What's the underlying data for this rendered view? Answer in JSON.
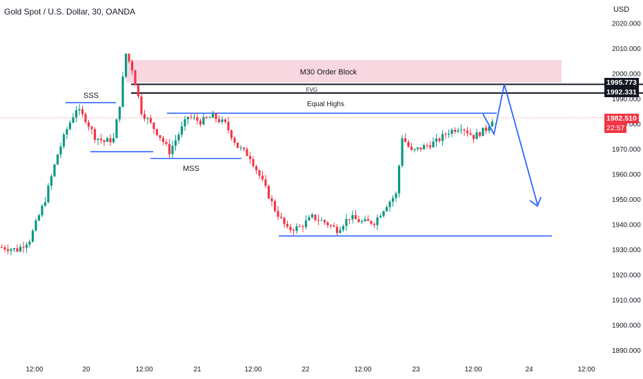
{
  "header": {
    "title": "Gold Spot / U.S. Dollar, 30, OANDA",
    "currency": "USD"
  },
  "colors": {
    "up": "#089981",
    "down": "#f23645",
    "drawing": "#2962ff",
    "zone": "#f8d7e0",
    "level": "#131722"
  },
  "price_tags": {
    "level_1": "1995.773",
    "level_2": "1992.331",
    "last_price": "1982.510",
    "countdown": "22:57"
  },
  "annotations": {
    "order_block": "M30 Order Block",
    "fvg": "FVG",
    "equal_highs": "Equal Highs",
    "sss": "SSS",
    "mss": "MSS"
  },
  "chart_data": {
    "type": "candlestick",
    "title": "Gold Spot / U.S. Dollar, 30, OANDA",
    "ylabel": "USD",
    "ylim": [
      1885,
      2025
    ],
    "y_ticks": [
      "2020.000",
      "2010.000",
      "2000.000",
      "1990.000",
      "1980.000",
      "1970.000",
      "1960.000",
      "1950.000",
      "1940.000",
      "1930.000",
      "1920.000",
      "1910.000",
      "1900.000",
      "1890.000"
    ],
    "x_ticks": [
      "12:00",
      "20",
      "12:00",
      "21",
      "12:00",
      "22",
      "12:00",
      "23",
      "12:00",
      "24",
      "12:00"
    ],
    "price_anchors": [
      [
        0,
        1931
      ],
      [
        5,
        1930
      ],
      [
        9,
        1934
      ],
      [
        14,
        1950
      ],
      [
        18,
        1968
      ],
      [
        21,
        1978
      ],
      [
        24,
        1986
      ],
      [
        27,
        1982
      ],
      [
        30,
        1975
      ],
      [
        33,
        1973
      ],
      [
        36,
        1974
      ],
      [
        38,
        1988
      ],
      [
        40,
        2008
      ],
      [
        42,
        2002
      ],
      [
        45,
        1985
      ],
      [
        48,
        1980
      ],
      [
        51,
        1975
      ],
      [
        54,
        1969
      ],
      [
        57,
        1976
      ],
      [
        60,
        1983
      ],
      [
        64,
        1981
      ],
      [
        68,
        1983
      ],
      [
        72,
        1980
      ],
      [
        76,
        1971
      ],
      [
        80,
        1967
      ],
      [
        84,
        1957
      ],
      [
        88,
        1946
      ],
      [
        92,
        1938
      ],
      [
        96,
        1939
      ],
      [
        100,
        1943
      ],
      [
        104,
        1941
      ],
      [
        108,
        1938
      ],
      [
        112,
        1943
      ],
      [
        116,
        1941
      ],
      [
        120,
        1941
      ],
      [
        124,
        1948
      ],
      [
        127,
        1952
      ],
      [
        129,
        1975
      ],
      [
        132,
        1969
      ],
      [
        136,
        1971
      ],
      [
        140,
        1973
      ],
      [
        144,
        1977
      ],
      [
        148,
        1979
      ],
      [
        152,
        1975
      ],
      [
        156,
        1978
      ],
      [
        158,
        1982
      ]
    ],
    "zones": [
      {
        "label": "M30 Order Block",
        "ymin": 1996.5,
        "ymax": 2005.5
      },
      {
        "label": "FVG",
        "ymin": 1992.331,
        "ymax": 1995.773
      }
    ],
    "levels": [
      {
        "label": "Equal Highs",
        "y": 1984.3
      },
      {
        "label": "SSS",
        "y": 1988.5
      },
      {
        "label": "MSS",
        "y": 1966.3
      },
      {
        "label": "",
        "y": 1935.5
      }
    ],
    "projection": [
      1984,
      1976,
      1995.8,
      1948
    ],
    "last_price": 1982.51
  }
}
